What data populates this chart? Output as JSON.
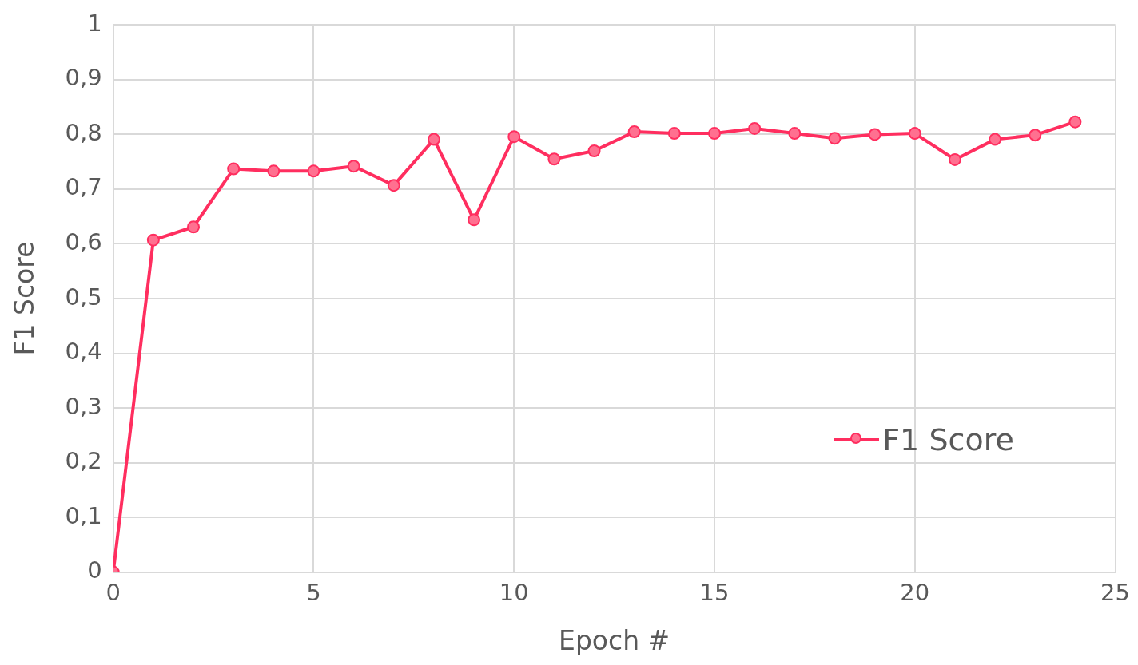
{
  "chart_data": {
    "type": "line",
    "xlabel": "Epoch #",
    "ylabel": "F1 Score",
    "x": [
      0,
      1,
      2,
      3,
      4,
      5,
      6,
      7,
      8,
      9,
      10,
      11,
      12,
      13,
      14,
      15,
      16,
      17,
      18,
      19,
      20,
      21,
      22,
      23,
      24
    ],
    "series": [
      {
        "name": "F1 Score",
        "color": "#ff2e5f",
        "values": [
          0,
          0.607,
          0.631,
          0.737,
          0.733,
          0.733,
          0.742,
          0.707,
          0.791,
          0.644,
          0.796,
          0.755,
          0.77,
          0.805,
          0.802,
          0.802,
          0.811,
          0.802,
          0.793,
          0.8,
          0.802,
          0.754,
          0.791,
          0.799,
          0.823
        ]
      }
    ],
    "xlim": [
      0,
      25
    ],
    "xticks": [
      0,
      5,
      10,
      15,
      20,
      25
    ],
    "ylim": [
      0,
      1
    ],
    "yticks": [
      0,
      {
        "value": 0.1,
        "label": "0,1"
      },
      {
        "value": 0.2,
        "label": "0,2"
      },
      {
        "value": 0.3,
        "label": "0,3"
      },
      {
        "value": 0.4,
        "label": "0,4"
      },
      {
        "value": 0.5,
        "label": "0,5"
      },
      {
        "value": 0.6,
        "label": "0,6"
      },
      {
        "value": 0.7,
        "label": "0,7"
      },
      {
        "value": 0.8,
        "label": "0,8"
      },
      {
        "value": 0.9,
        "label": "0,9"
      },
      1
    ],
    "grid": true,
    "legend": "bottom right",
    "marker": "circle",
    "line_style": "solid"
  }
}
